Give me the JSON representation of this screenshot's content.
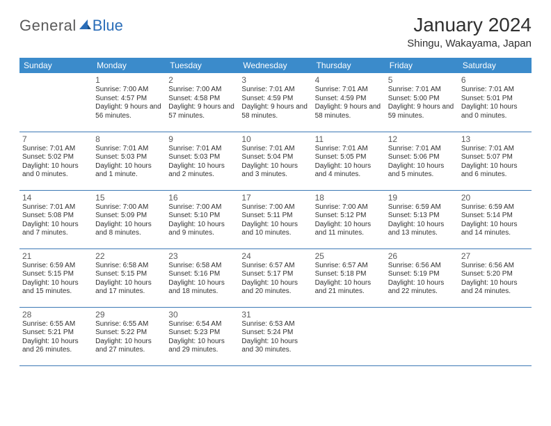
{
  "logo": {
    "part1": "General",
    "part2": "Blue"
  },
  "title": "January 2024",
  "location": "Shingu, Wakayama, Japan",
  "colors": {
    "header_bg": "#3b8bcb",
    "header_text": "#ffffff",
    "row_border": "#3b78b5",
    "text": "#303030",
    "daynum": "#5a5a5a",
    "logo_gray": "#5a5a5a",
    "logo_blue": "#2a6db8"
  },
  "day_headers": [
    "Sunday",
    "Monday",
    "Tuesday",
    "Wednesday",
    "Thursday",
    "Friday",
    "Saturday"
  ],
  "weeks": [
    [
      null,
      {
        "n": "1",
        "sr": "7:00 AM",
        "ss": "4:57 PM",
        "dl": "9 hours and 56 minutes."
      },
      {
        "n": "2",
        "sr": "7:00 AM",
        "ss": "4:58 PM",
        "dl": "9 hours and 57 minutes."
      },
      {
        "n": "3",
        "sr": "7:01 AM",
        "ss": "4:59 PM",
        "dl": "9 hours and 58 minutes."
      },
      {
        "n": "4",
        "sr": "7:01 AM",
        "ss": "4:59 PM",
        "dl": "9 hours and 58 minutes."
      },
      {
        "n": "5",
        "sr": "7:01 AM",
        "ss": "5:00 PM",
        "dl": "9 hours and 59 minutes."
      },
      {
        "n": "6",
        "sr": "7:01 AM",
        "ss": "5:01 PM",
        "dl": "10 hours and 0 minutes."
      }
    ],
    [
      {
        "n": "7",
        "sr": "7:01 AM",
        "ss": "5:02 PM",
        "dl": "10 hours and 0 minutes."
      },
      {
        "n": "8",
        "sr": "7:01 AM",
        "ss": "5:03 PM",
        "dl": "10 hours and 1 minute."
      },
      {
        "n": "9",
        "sr": "7:01 AM",
        "ss": "5:03 PM",
        "dl": "10 hours and 2 minutes."
      },
      {
        "n": "10",
        "sr": "7:01 AM",
        "ss": "5:04 PM",
        "dl": "10 hours and 3 minutes."
      },
      {
        "n": "11",
        "sr": "7:01 AM",
        "ss": "5:05 PM",
        "dl": "10 hours and 4 minutes."
      },
      {
        "n": "12",
        "sr": "7:01 AM",
        "ss": "5:06 PM",
        "dl": "10 hours and 5 minutes."
      },
      {
        "n": "13",
        "sr": "7:01 AM",
        "ss": "5:07 PM",
        "dl": "10 hours and 6 minutes."
      }
    ],
    [
      {
        "n": "14",
        "sr": "7:01 AM",
        "ss": "5:08 PM",
        "dl": "10 hours and 7 minutes."
      },
      {
        "n": "15",
        "sr": "7:00 AM",
        "ss": "5:09 PM",
        "dl": "10 hours and 8 minutes."
      },
      {
        "n": "16",
        "sr": "7:00 AM",
        "ss": "5:10 PM",
        "dl": "10 hours and 9 minutes."
      },
      {
        "n": "17",
        "sr": "7:00 AM",
        "ss": "5:11 PM",
        "dl": "10 hours and 10 minutes."
      },
      {
        "n": "18",
        "sr": "7:00 AM",
        "ss": "5:12 PM",
        "dl": "10 hours and 11 minutes."
      },
      {
        "n": "19",
        "sr": "6:59 AM",
        "ss": "5:13 PM",
        "dl": "10 hours and 13 minutes."
      },
      {
        "n": "20",
        "sr": "6:59 AM",
        "ss": "5:14 PM",
        "dl": "10 hours and 14 minutes."
      }
    ],
    [
      {
        "n": "21",
        "sr": "6:59 AM",
        "ss": "5:15 PM",
        "dl": "10 hours and 15 minutes."
      },
      {
        "n": "22",
        "sr": "6:58 AM",
        "ss": "5:15 PM",
        "dl": "10 hours and 17 minutes."
      },
      {
        "n": "23",
        "sr": "6:58 AM",
        "ss": "5:16 PM",
        "dl": "10 hours and 18 minutes."
      },
      {
        "n": "24",
        "sr": "6:57 AM",
        "ss": "5:17 PM",
        "dl": "10 hours and 20 minutes."
      },
      {
        "n": "25",
        "sr": "6:57 AM",
        "ss": "5:18 PM",
        "dl": "10 hours and 21 minutes."
      },
      {
        "n": "26",
        "sr": "6:56 AM",
        "ss": "5:19 PM",
        "dl": "10 hours and 22 minutes."
      },
      {
        "n": "27",
        "sr": "6:56 AM",
        "ss": "5:20 PM",
        "dl": "10 hours and 24 minutes."
      }
    ],
    [
      {
        "n": "28",
        "sr": "6:55 AM",
        "ss": "5:21 PM",
        "dl": "10 hours and 26 minutes."
      },
      {
        "n": "29",
        "sr": "6:55 AM",
        "ss": "5:22 PM",
        "dl": "10 hours and 27 minutes."
      },
      {
        "n": "30",
        "sr": "6:54 AM",
        "ss": "5:23 PM",
        "dl": "10 hours and 29 minutes."
      },
      {
        "n": "31",
        "sr": "6:53 AM",
        "ss": "5:24 PM",
        "dl": "10 hours and 30 minutes."
      },
      null,
      null,
      null
    ]
  ],
  "labels": {
    "sunrise": "Sunrise: ",
    "sunset": "Sunset: ",
    "daylight": "Daylight: "
  }
}
